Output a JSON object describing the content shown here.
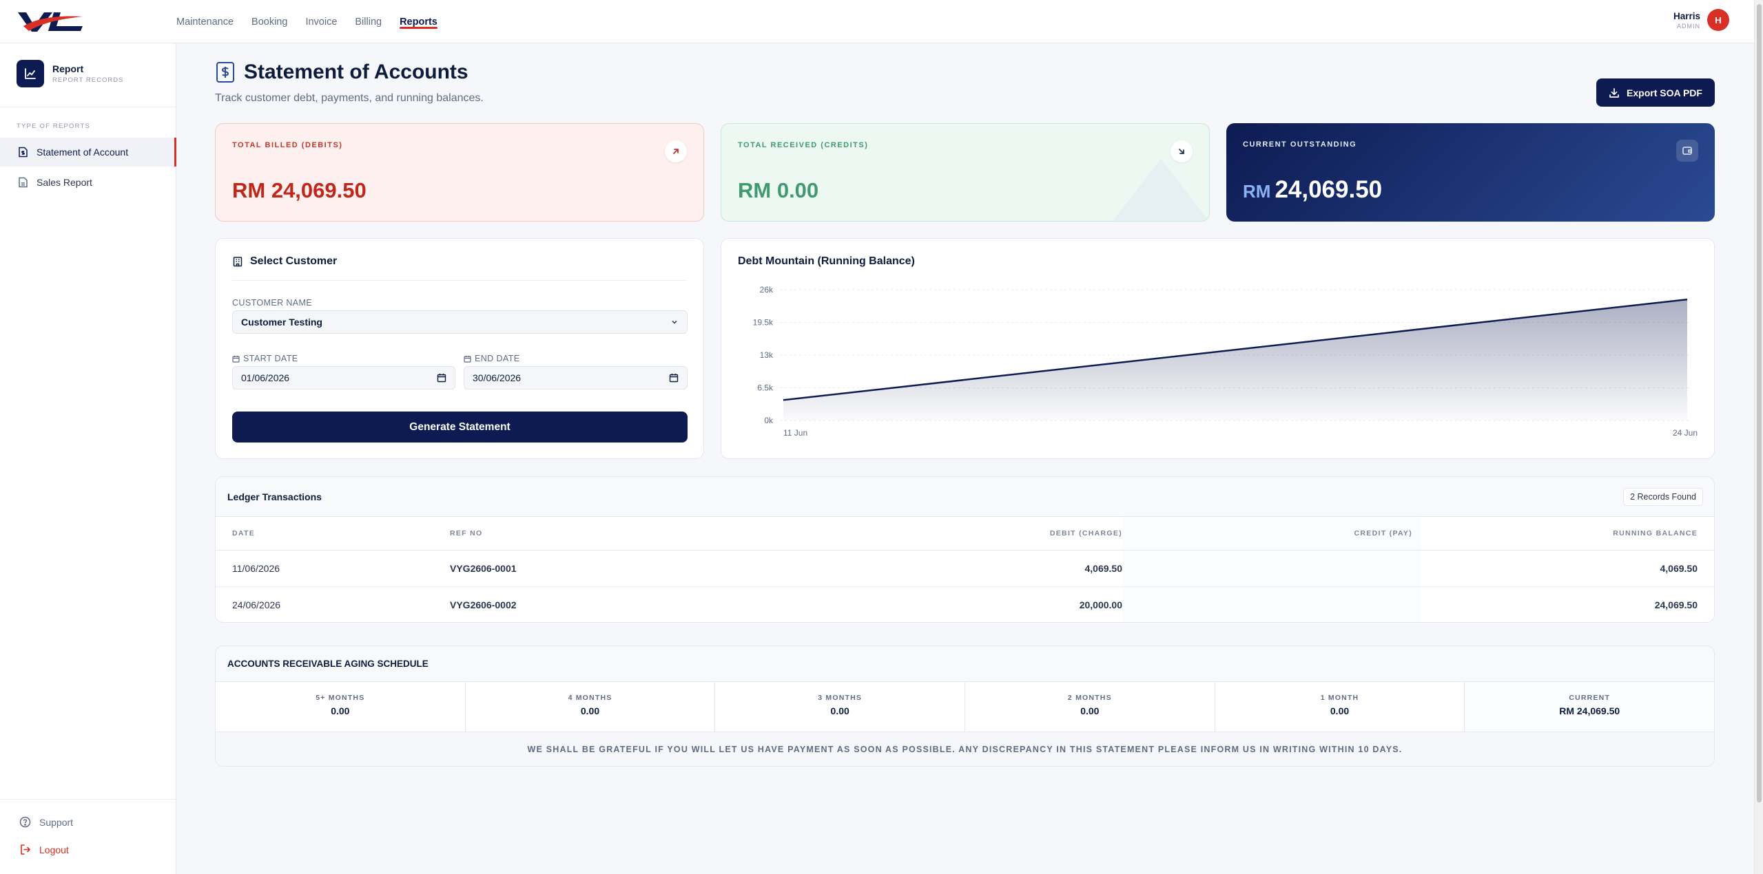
{
  "app": {
    "logo_text": "VL",
    "nav": [
      "Maintenance",
      "Booking",
      "Invoice",
      "Billing",
      "Reports"
    ],
    "active_nav": "Reports",
    "user": {
      "name": "Harris",
      "role": "ADMIN",
      "initial": "H"
    }
  },
  "sidebar": {
    "title": "Report",
    "subtitle": "REPORT RECORDS",
    "section": "TYPE OF REPORTS",
    "items": [
      {
        "label": "Statement of Account",
        "active": true
      },
      {
        "label": "Sales Report",
        "active": false
      }
    ],
    "support": "Support",
    "logout": "Logout"
  },
  "header": {
    "title": "Statement of Accounts",
    "subtitle": "Track customer debt, payments, and running balances.",
    "export_label": "Export SOA PDF"
  },
  "kpis": {
    "debit": {
      "label": "TOTAL BILLED (DEBITS)",
      "value": "RM 24,069.50"
    },
    "credit": {
      "label": "TOTAL RECEIVED (CREDITS)",
      "value": "RM 0.00"
    },
    "outstanding": {
      "label": "CURRENT OUTSTANDING",
      "currency": "RM",
      "value": "24,069.50"
    }
  },
  "select_customer": {
    "title": "Select Customer",
    "customer_label": "CUSTOMER NAME",
    "customer_value": "Customer Testing",
    "start_label": "START DATE",
    "start_value": "01/06/2026",
    "end_label": "END DATE",
    "end_value": "30/06/2026",
    "generate_label": "Generate Statement"
  },
  "chart_data": {
    "type": "area",
    "title": "Debt Mountain (Running Balance)",
    "x": [
      "11 Jun",
      "24 Jun"
    ],
    "series": [
      {
        "values": [
          4069.5,
          24069.5
        ]
      }
    ],
    "yticks": [
      "0k",
      "6.5k",
      "13k",
      "19.5k",
      "26k"
    ],
    "ylim": [
      0,
      26000
    ],
    "grid": true,
    "line_color": "#0d1b52"
  },
  "ledger": {
    "title": "Ledger Transactions",
    "badge": "2 Records Found",
    "columns": [
      "DATE",
      "REF NO",
      "DEBIT (CHARGE)",
      "CREDIT (PAY)",
      "RUNNING BALANCE"
    ],
    "rows": [
      {
        "date": "11/06/2026",
        "ref": "VYG2606-0001",
        "debit": "4,069.50",
        "credit": "",
        "balance": "4,069.50"
      },
      {
        "date": "24/06/2026",
        "ref": "VYG2606-0002",
        "debit": "20,000.00",
        "credit": "",
        "balance": "24,069.50"
      }
    ]
  },
  "aging": {
    "title": "ACCOUNTS RECEIVABLE AGING SCHEDULE",
    "buckets": [
      {
        "label": "5+ MONTHS",
        "value": "0.00"
      },
      {
        "label": "4 MONTHS",
        "value": "0.00"
      },
      {
        "label": "3 MONTHS",
        "value": "0.00"
      },
      {
        "label": "2 MONTHS",
        "value": "0.00"
      },
      {
        "label": "1 MONTH",
        "value": "0.00"
      },
      {
        "label": "CURRENT",
        "value": "RM 24,069.50"
      }
    ],
    "note": "WE SHALL BE GRATEFUL IF YOU WILL LET US HAVE PAYMENT AS SOON AS POSSIBLE. ANY DISCREPANCY IN THIS STATEMENT PLEASE INFORM US IN WRITING WITHIN 10 DAYS."
  }
}
